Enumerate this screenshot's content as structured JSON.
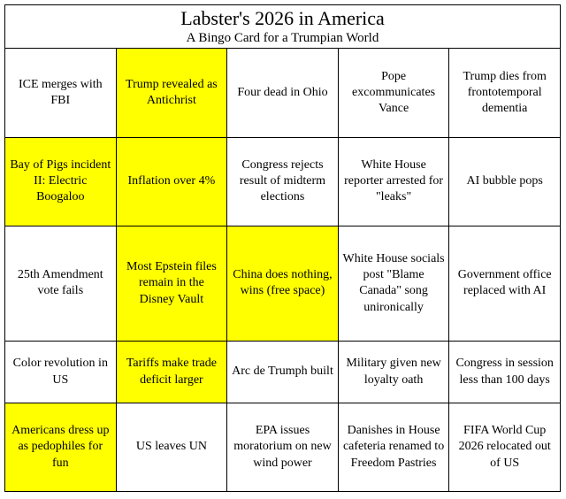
{
  "header": {
    "title": "Labster's 2026 in America",
    "subtitle": "A Bingo Card for a Trumpian World"
  },
  "grid": {
    "highlight_color": "#ffff00",
    "rows": [
      [
        {
          "text": "ICE merges with FBI",
          "marked": false
        },
        {
          "text": "Trump revealed as Antichrist",
          "marked": true
        },
        {
          "text": "Four dead in Ohio",
          "marked": false
        },
        {
          "text": "Pope excommunicates Vance",
          "marked": false
        },
        {
          "text": "Trump dies from frontotemporal dementia",
          "marked": false
        }
      ],
      [
        {
          "text": "Bay of Pigs incident II: Electric Boogaloo",
          "marked": true
        },
        {
          "text": "Inflation over 4%",
          "marked": true
        },
        {
          "text": "Congress rejects result of midterm elections",
          "marked": false
        },
        {
          "text": "White House reporter arrested for \"leaks\"",
          "marked": false
        },
        {
          "text": "AI bubble pops",
          "marked": false
        }
      ],
      [
        {
          "text": "25th Amendment vote fails",
          "marked": false
        },
        {
          "text": "Most Epstein files remain in the Disney Vault",
          "marked": true
        },
        {
          "text": "China does nothing, wins (free space)",
          "marked": true
        },
        {
          "text": "White House socials post \"Blame Canada\" song unironically",
          "marked": false
        },
        {
          "text": "Government office replaced with AI",
          "marked": false
        }
      ],
      [
        {
          "text": "Color revolution in US",
          "marked": false
        },
        {
          "text": "Tariffs make trade deficit larger",
          "marked": true
        },
        {
          "text": "Arc de Trumph built",
          "marked": false
        },
        {
          "text": "Military given new loyalty oath",
          "marked": false
        },
        {
          "text": "Congress in session less than 100 days",
          "marked": false
        }
      ],
      [
        {
          "text": "Americans dress up as pedophiles for fun",
          "marked": true
        },
        {
          "text": "US leaves UN",
          "marked": false
        },
        {
          "text": "EPA issues moratorium on new wind power",
          "marked": false
        },
        {
          "text": "Danishes in House cafeteria renamed to Freedom Pastries",
          "marked": false
        },
        {
          "text": "FIFA World Cup 2026 relocated out of US",
          "marked": false
        }
      ]
    ]
  }
}
